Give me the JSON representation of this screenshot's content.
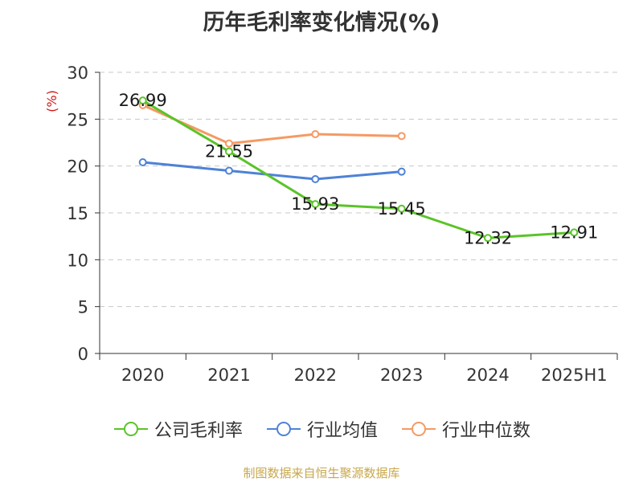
{
  "colors": {
    "company": "#5ac428",
    "industry_avg": "#4e82d6",
    "industry_median": "#f59a63",
    "ylabel": "#d01818",
    "source": "#c8a74b"
  },
  "source_text": "制图数据来自恒生聚源数据库",
  "chart_data": {
    "type": "line",
    "title": "历年毛利率变化情况(%)",
    "ylabel": "(%)",
    "xlabel": "",
    "categories": [
      "2020",
      "2021",
      "2022",
      "2023",
      "2024",
      "2025H1"
    ],
    "ylim": [
      0,
      30
    ],
    "yticks": [
      0,
      5,
      10,
      15,
      20,
      25,
      30
    ],
    "grid": true,
    "legend_position": "bottom",
    "series": [
      {
        "name": "公司毛利率",
        "color_key": "company",
        "show_labels": true,
        "values": [
          26.99,
          21.55,
          15.93,
          15.45,
          12.32,
          12.91
        ]
      },
      {
        "name": "行业均值",
        "color_key": "industry_avg",
        "show_labels": false,
        "values": [
          20.4,
          19.5,
          18.6,
          19.4,
          null,
          null
        ]
      },
      {
        "name": "行业中位数",
        "color_key": "industry_median",
        "show_labels": false,
        "values": [
          26.5,
          22.4,
          23.4,
          23.2,
          null,
          null
        ]
      }
    ]
  }
}
